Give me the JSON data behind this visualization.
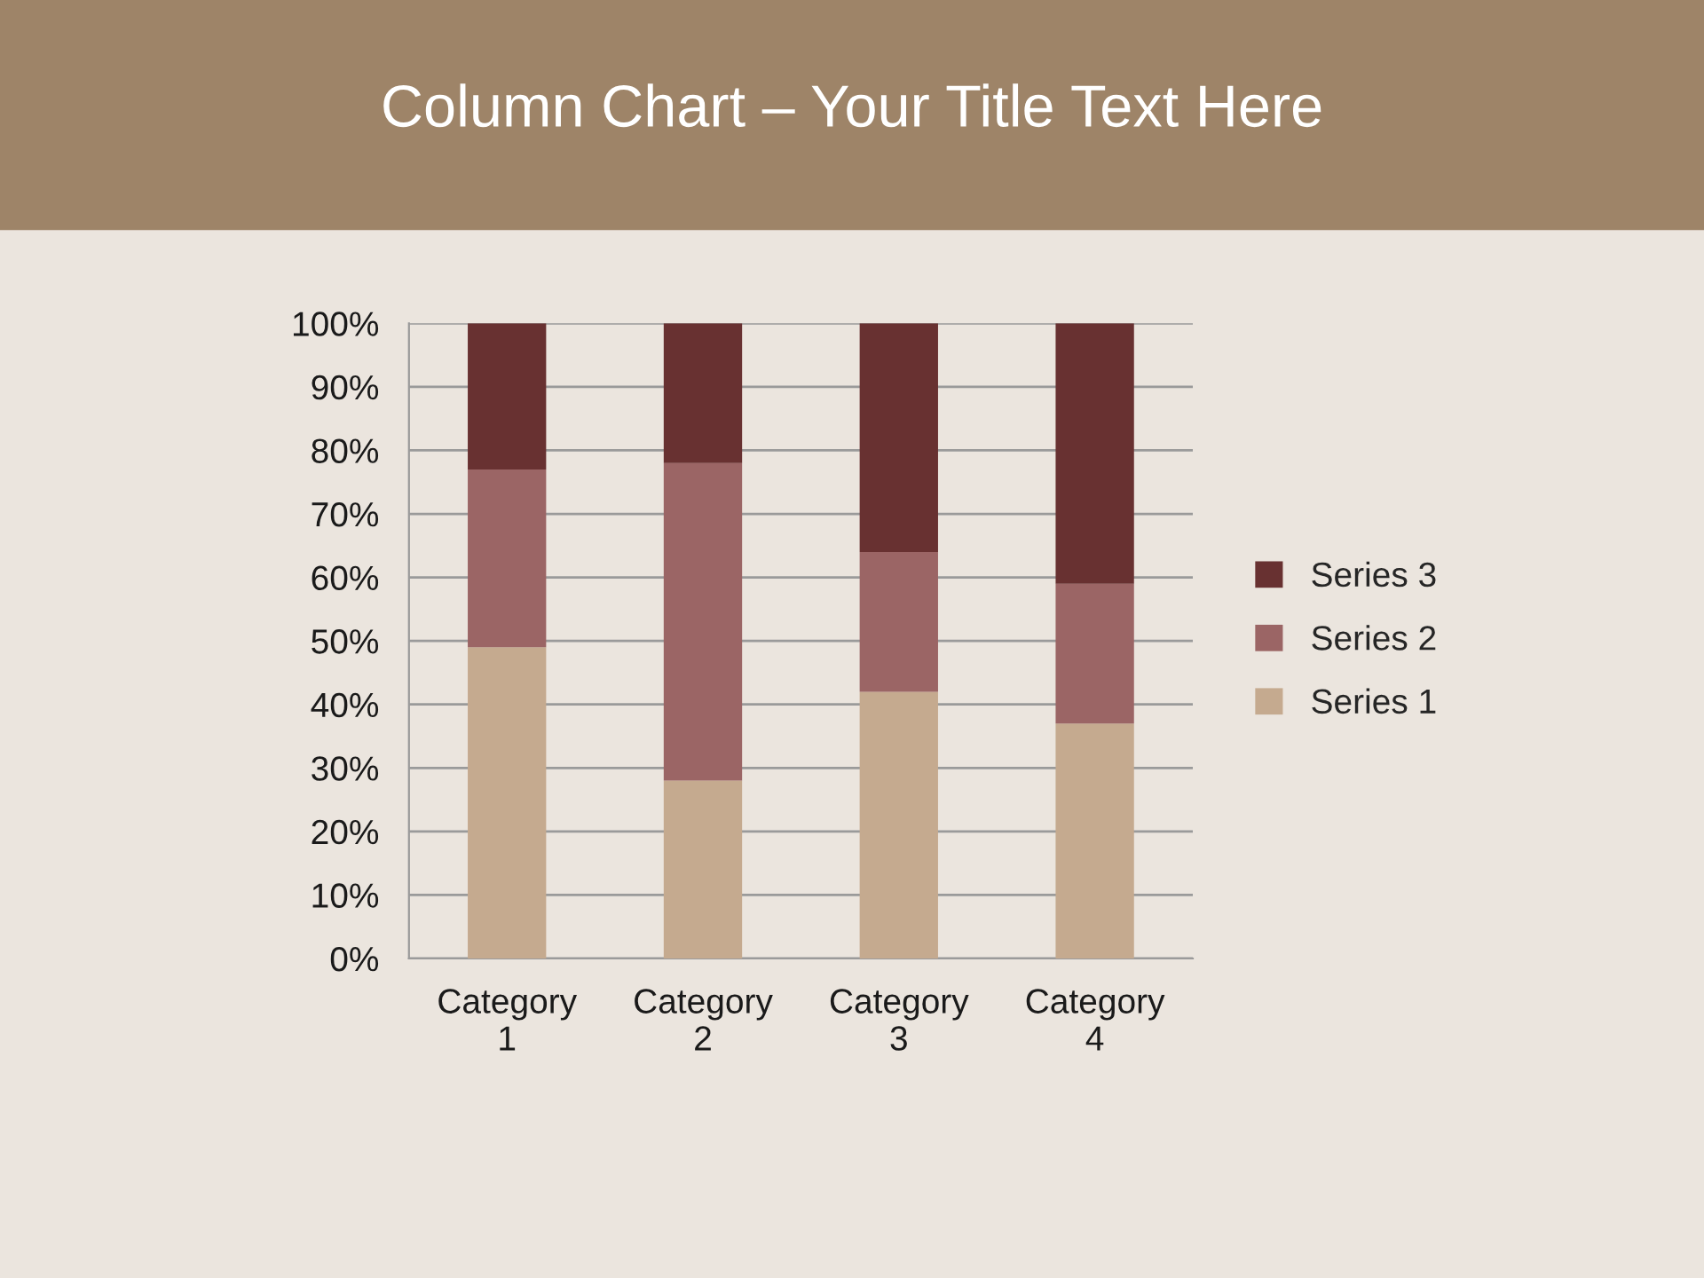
{
  "chart_data": {
    "type": "bar",
    "title": "Column Chart – Your Title Text Here",
    "categories": [
      "Category 1",
      "Category 2",
      "Category 3",
      "Category 4"
    ],
    "stacked": true,
    "series": [
      {
        "name": "Series 1",
        "color": "#c5aa8f",
        "values": [
          49,
          28,
          42,
          37
        ]
      },
      {
        "name": "Series 2",
        "color": "#9b6565",
        "values": [
          28,
          50,
          22,
          22
        ]
      },
      {
        "name": "Series 3",
        "color": "#683131",
        "values": [
          23,
          22,
          36,
          41
        ]
      }
    ],
    "ylim": [
      0,
      100
    ],
    "yticks": [
      {
        "value": 0,
        "label": "0%"
      },
      {
        "value": 10,
        "label": "10%"
      },
      {
        "value": 20,
        "label": "20%"
      },
      {
        "value": 30,
        "label": "30%"
      },
      {
        "value": 40,
        "label": "40%"
      },
      {
        "value": 50,
        "label": "50%"
      },
      {
        "value": 60,
        "label": "60%"
      },
      {
        "value": 70,
        "label": "70%"
      },
      {
        "value": 80,
        "label": "80%"
      },
      {
        "value": 90,
        "label": "90%"
      },
      {
        "value": 100,
        "label": "100%"
      }
    ],
    "grid": "y",
    "legend": "right"
  }
}
